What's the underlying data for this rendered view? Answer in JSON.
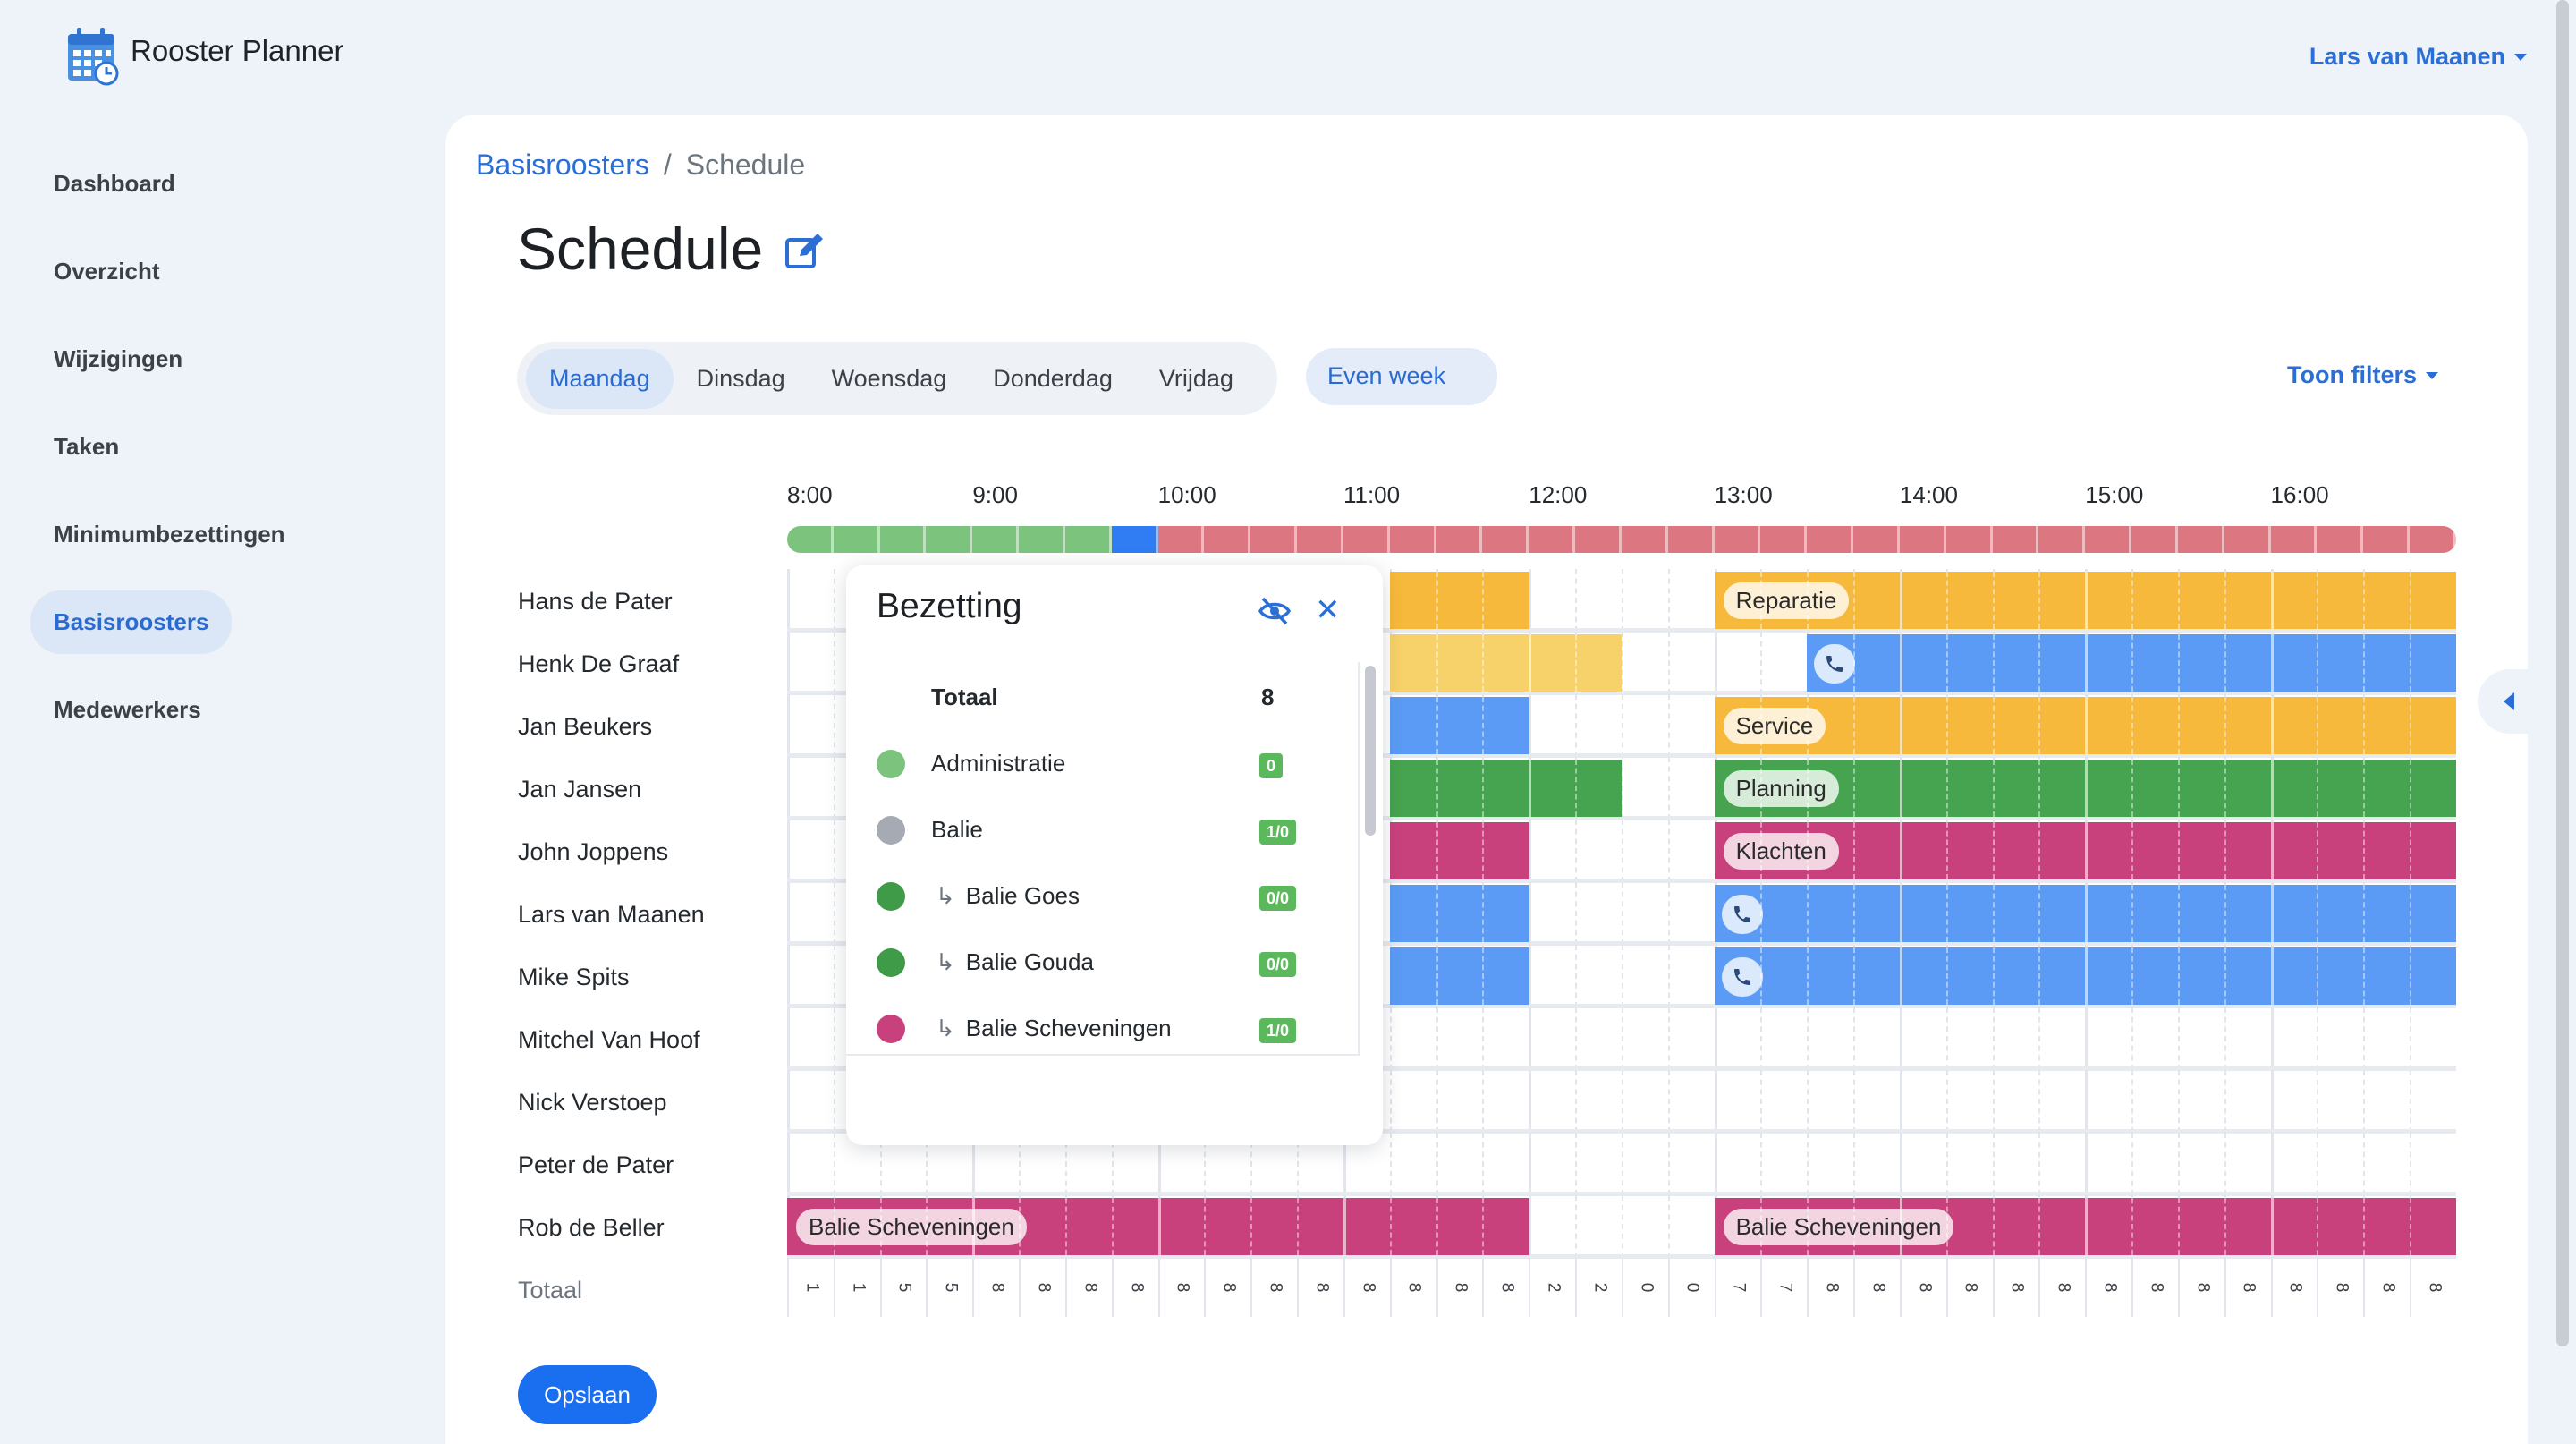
{
  "app": {
    "title": "Rooster Planner",
    "user": "Lars van Maanen"
  },
  "sidebar": {
    "items": [
      {
        "label": "Dashboard",
        "active": false
      },
      {
        "label": "Overzicht",
        "active": false
      },
      {
        "label": "Wijzigingen",
        "active": false
      },
      {
        "label": "Taken",
        "active": false
      },
      {
        "label": "Minimumbezettingen",
        "active": false
      },
      {
        "label": "Basisroosters",
        "active": true
      },
      {
        "label": "Medewerkers",
        "active": false
      }
    ]
  },
  "breadcrumb": {
    "parent": "Basisroosters",
    "separator": "/",
    "current": "Schedule"
  },
  "page": {
    "title": "Schedule"
  },
  "days": [
    "Maandag",
    "Dinsdag",
    "Woensdag",
    "Donderdag",
    "Vrijdag"
  ],
  "active_day": "Maandag",
  "week_toggle": "Even week",
  "filters_label": "Toon filters",
  "times": [
    "8:00",
    "9:00",
    "10:00",
    "11:00",
    "12:00",
    "13:00",
    "14:00",
    "15:00",
    "16:00"
  ],
  "colors": {
    "yellow": "#f6b93b",
    "yellow_light": "#f7d26a",
    "blue": "#5b9bf5",
    "green": "#46a34f",
    "magenta": "#c9417c",
    "occ_green": "#7cc47e",
    "occ_blue": "#2f7cf3",
    "occ_red": "#dc7681"
  },
  "occupancy": [
    "occ_green",
    "occ_green",
    "occ_green",
    "occ_green",
    "occ_green",
    "occ_green",
    "occ_green",
    "occ_blue",
    "occ_red",
    "occ_red",
    "occ_red",
    "occ_red",
    "occ_red",
    "occ_red",
    "occ_red",
    "occ_red",
    "occ_red",
    "occ_red",
    "occ_red",
    "occ_red",
    "occ_red",
    "occ_red",
    "occ_red",
    "occ_red",
    "occ_red",
    "occ_red",
    "occ_red",
    "occ_red",
    "occ_red",
    "occ_red",
    "occ_red",
    "occ_red",
    "occ_red",
    "occ_red",
    "occ_red",
    "occ_red"
  ],
  "employees": [
    {
      "name": "Hans de Pater",
      "blocks": [
        {
          "from": 13,
          "to": 16,
          "color": "yellow"
        },
        {
          "from": 20,
          "to": 36,
          "color": "yellow",
          "label": "Reparatie"
        }
      ]
    },
    {
      "name": "Henk De Graaf",
      "blocks": [
        {
          "from": 13,
          "to": 18,
          "color": "yellow_light"
        },
        {
          "from": 22,
          "to": 36,
          "color": "blue",
          "phone": true
        }
      ]
    },
    {
      "name": "Jan Beukers",
      "blocks": [
        {
          "from": 13,
          "to": 16,
          "color": "blue"
        },
        {
          "from": 20,
          "to": 36,
          "color": "yellow",
          "label": "Service"
        }
      ]
    },
    {
      "name": "Jan Jansen",
      "blocks": [
        {
          "from": 13,
          "to": 18,
          "color": "green"
        },
        {
          "from": 20,
          "to": 36,
          "color": "green",
          "label": "Planning"
        }
      ]
    },
    {
      "name": "John Joppens",
      "blocks": [
        {
          "from": 13,
          "to": 16,
          "color": "magenta"
        },
        {
          "from": 20,
          "to": 36,
          "color": "magenta",
          "label": "Klachten"
        }
      ]
    },
    {
      "name": "Lars van Maanen",
      "blocks": [
        {
          "from": 13,
          "to": 16,
          "color": "blue"
        },
        {
          "from": 20,
          "to": 36,
          "color": "blue",
          "phone": true
        }
      ]
    },
    {
      "name": "Mike Spits",
      "blocks": [
        {
          "from": 13,
          "to": 16,
          "color": "blue"
        },
        {
          "from": 20,
          "to": 36,
          "color": "blue",
          "phone": true
        }
      ]
    },
    {
      "name": "Mitchel Van Hoof",
      "blocks": []
    },
    {
      "name": "Nick Verstoep",
      "blocks": []
    },
    {
      "name": "Peter de Pater",
      "blocks": []
    },
    {
      "name": "Rob de Beller",
      "blocks": [
        {
          "from": 0,
          "to": 16,
          "color": "magenta",
          "label": "Balie Scheveningen"
        },
        {
          "from": 20,
          "to": 36,
          "color": "magenta",
          "label": "Balie Scheveningen"
        }
      ]
    }
  ],
  "totals": {
    "label": "Totaal",
    "values": [
      "1",
      "1",
      "5",
      "5",
      "8",
      "8",
      "8",
      "8",
      "8",
      "8",
      "8",
      "8",
      "8",
      "8",
      "8",
      "8",
      "2",
      "2",
      "0",
      "0",
      "7",
      "7",
      "8",
      "8",
      "8",
      "8",
      "8",
      "8",
      "8",
      "8",
      "8",
      "8",
      "8",
      "8",
      "8",
      "8"
    ]
  },
  "popup": {
    "title": "Bezetting",
    "total_label": "Totaal",
    "total_value": "8",
    "rows": [
      {
        "label": "Administratie",
        "dot": "#7cc47e",
        "badge": "0",
        "sub": false
      },
      {
        "label": "Balie",
        "dot": "#a6abb3",
        "badge": "1/0",
        "sub": false
      },
      {
        "label": "Balie Goes",
        "dot": "#3f9b47",
        "badge": "0/0",
        "sub": true
      },
      {
        "label": "Balie Gouda",
        "dot": "#3f9b47",
        "badge": "0/0",
        "sub": true
      },
      {
        "label": "Balie Scheveningen",
        "dot": "#c9417c",
        "badge": "1/0",
        "sub": true
      }
    ],
    "badge_color": "#5cb85c"
  },
  "save_label": "Opslaan"
}
